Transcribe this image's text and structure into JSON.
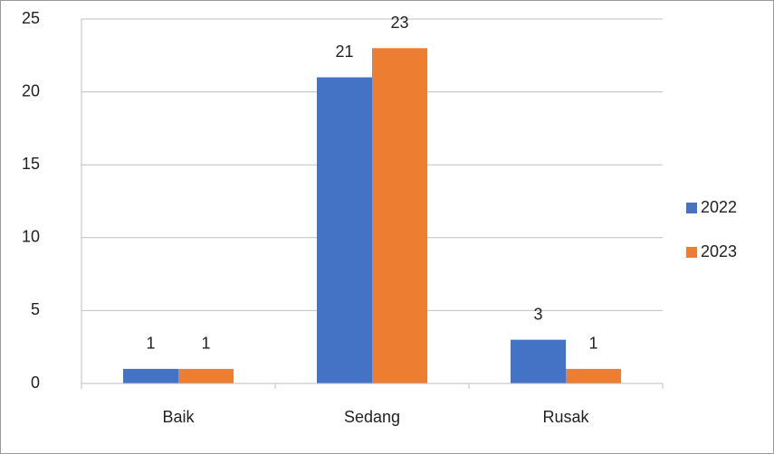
{
  "chart_data": {
    "type": "bar",
    "categories": [
      "Baik",
      "Sedang",
      "Rusak"
    ],
    "series": [
      {
        "name": "2022",
        "color": "#4472c4",
        "values": [
          1,
          21,
          3
        ]
      },
      {
        "name": "2023",
        "color": "#ed7d31",
        "values": [
          1,
          23,
          1
        ]
      }
    ],
    "ylim": [
      0,
      25
    ],
    "yticks": [
      0,
      5,
      10,
      15,
      20,
      25
    ],
    "grid": true,
    "legend": "right",
    "data_labels": true
  }
}
